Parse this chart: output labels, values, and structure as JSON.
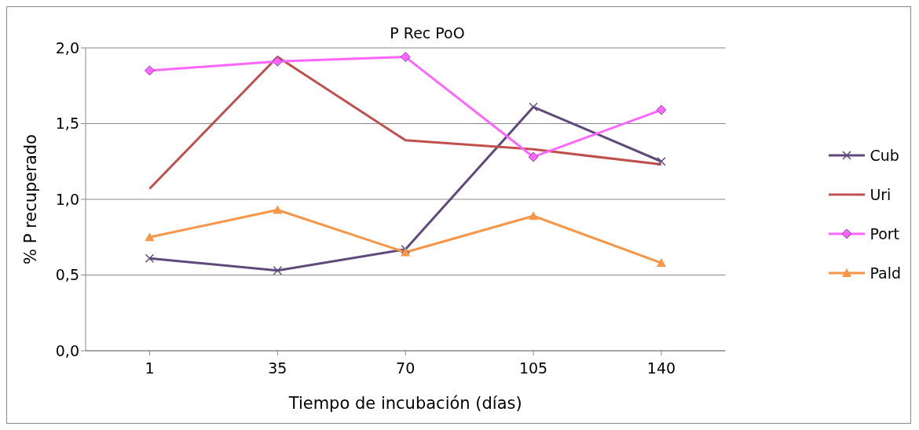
{
  "chart_data": {
    "type": "line",
    "title": "P Rec PoO",
    "xlabel": "Tiempo de incubación (días)",
    "ylabel": "% P recuperado",
    "categories": [
      "1",
      "35",
      "70",
      "105",
      "140"
    ],
    "series": [
      {
        "name": "Cub",
        "color": "#604a7b",
        "marker": "cross",
        "values": [
          0.61,
          0.53,
          0.67,
          1.61,
          1.25
        ]
      },
      {
        "name": "Uri",
        "color": "#c0504d",
        "marker": "none",
        "values": [
          1.07,
          1.94,
          1.39,
          1.33,
          1.23
        ]
      },
      {
        "name": "Port",
        "color": "#ff66ff",
        "marker": "diamond",
        "values": [
          1.85,
          1.91,
          1.94,
          1.28,
          1.59
        ]
      },
      {
        "name": "Pald",
        "color": "#f79646",
        "marker": "triangle",
        "values": [
          0.75,
          0.93,
          0.65,
          0.89,
          0.58
        ]
      }
    ],
    "ylim": [
      0,
      2
    ],
    "yticks": [
      {
        "value": 0,
        "label": "0,0"
      },
      {
        "value": 0.5,
        "label": "0,5"
      },
      {
        "value": 1,
        "label": "1,0"
      },
      {
        "value": 1.5,
        "label": "1,5"
      },
      {
        "value": 2,
        "label": "2,0"
      }
    ],
    "grid": "y",
    "legend": "right"
  }
}
